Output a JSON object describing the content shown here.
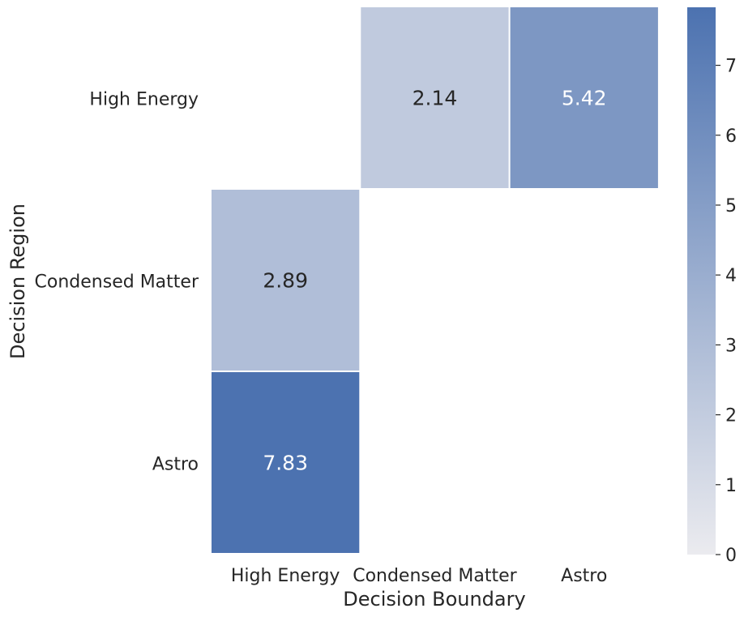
{
  "chart_data": {
    "type": "heatmap",
    "title": "",
    "xlabel": "Decision Boundary",
    "ylabel": "Decision Region",
    "x_categories": [
      "High Energy",
      "Condensed Matter",
      "Astro"
    ],
    "y_categories": [
      "High Energy",
      "Condensed Matter",
      "Astro"
    ],
    "values": [
      [
        null,
        2.14,
        5.42
      ],
      [
        2.89,
        null,
        null
      ],
      [
        7.83,
        null,
        null
      ]
    ],
    "value_labels": [
      [
        "",
        "2.14",
        "5.42"
      ],
      [
        "2.89",
        "",
        ""
      ],
      [
        "7.83",
        "",
        ""
      ]
    ],
    "colorbar": {
      "min": 0,
      "max": 7.83,
      "ticks": [
        "0",
        "1",
        "2",
        "3",
        "4",
        "5",
        "6",
        "7"
      ]
    },
    "colors": {
      "low": "#ebebef",
      "high": "#4c72b0",
      "text_dark": "#262626",
      "text_light": "#ffffff",
      "background": "#ffffff"
    }
  }
}
